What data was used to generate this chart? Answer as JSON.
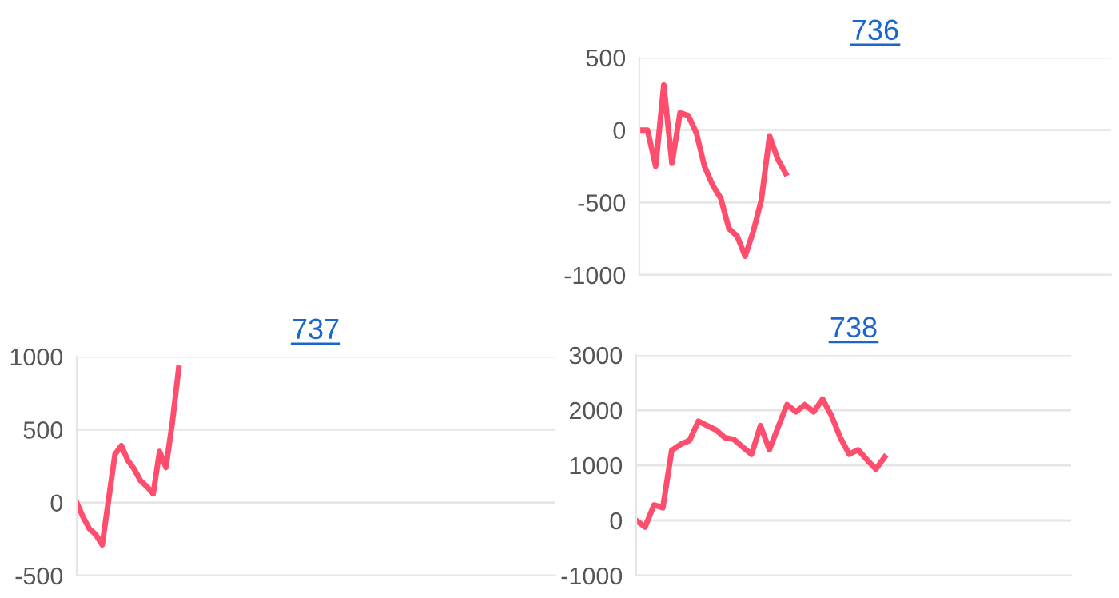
{
  "chart_data": [
    {
      "type": "line",
      "title": "736",
      "categories": [
        null,
        null,
        null,
        null,
        null,
        null,
        null,
        null,
        null,
        null,
        null,
        null,
        null,
        null,
        null,
        null,
        null,
        null,
        null,
        null,
        null,
        null,
        null,
        null,
        null,
        null,
        null,
        null,
        null,
        null,
        null,
        null,
        null,
        null,
        null,
        null,
        null,
        null,
        null,
        null,
        null,
        null,
        null,
        null,
        null,
        null,
        null,
        null,
        null,
        null,
        null,
        null,
        null,
        null,
        null,
        null,
        null,
        null,
        null
      ],
      "series": [
        {
          "color": "#ff4d6d",
          "values": [
            0,
            0,
            -250,
            310,
            -230,
            120,
            100,
            -20,
            -250,
            -380,
            -470,
            -680,
            -730,
            -870,
            -700,
            -480,
            -40,
            -200,
            -300,
            null,
            null,
            null,
            null,
            null,
            null,
            null,
            null,
            null,
            null,
            null,
            null,
            null,
            null,
            null,
            null,
            null,
            null,
            null,
            null,
            null,
            null,
            null,
            null,
            null,
            null,
            null,
            null,
            null,
            null,
            null,
            null,
            null,
            null,
            null,
            null,
            null,
            null,
            null,
            null
          ]
        }
      ],
      "ylim": [
        -1000,
        500
      ],
      "yticks": [
        -1000,
        -500,
        0,
        500
      ],
      "grid": "y",
      "tick_labels": "y",
      "marker": "none",
      "line_style": "solid"
    },
    {
      "type": "line",
      "title": "737",
      "categories": [
        null,
        null,
        null,
        null,
        null,
        null,
        null,
        null,
        null,
        null,
        null,
        null,
        null,
        null,
        null,
        null,
        null,
        null,
        null,
        null,
        null,
        null,
        null,
        null,
        null,
        null,
        null,
        null,
        null,
        null,
        null,
        null,
        null,
        null,
        null,
        null,
        null,
        null,
        null,
        null,
        null,
        null,
        null,
        null,
        null,
        null,
        null,
        null,
        null,
        null,
        null,
        null,
        null,
        null,
        null,
        null,
        null,
        null,
        null,
        null,
        null,
        null,
        null,
        null,
        null,
        null,
        null,
        null,
        null,
        null,
        null,
        null,
        null,
        null,
        null,
        null
      ],
      "series": [
        {
          "color": "#ff4d6d",
          "values": [
            0,
            -100,
            -180,
            -220,
            -290,
            20,
            330,
            390,
            290,
            230,
            150,
            110,
            60,
            350,
            240,
            550,
            920,
            null,
            null,
            null,
            null,
            null,
            null,
            null,
            null,
            null,
            null,
            null,
            null,
            null,
            null,
            null,
            null,
            null,
            null,
            null,
            null,
            null,
            null,
            null,
            null,
            null,
            null,
            null,
            null,
            null,
            null,
            null,
            null,
            null,
            null,
            null,
            null,
            null,
            null,
            null,
            null,
            null,
            null,
            null,
            null,
            null,
            null,
            null,
            null,
            null,
            null,
            null,
            null,
            null,
            null,
            null,
            null,
            null,
            null,
            null
          ]
        }
      ],
      "ylim": [
        -500,
        1000
      ],
      "yticks": [
        -500,
        0,
        500,
        1000
      ],
      "grid": "y",
      "tick_labels": "y",
      "marker": "none",
      "line_style": "solid"
    },
    {
      "type": "line",
      "title": "738",
      "categories": [
        null,
        null,
        null,
        null,
        null,
        null,
        null,
        null,
        null,
        null,
        null,
        null,
        null,
        null,
        null,
        null,
        null,
        null,
        null,
        null,
        null,
        null,
        null,
        null,
        null,
        null,
        null,
        null,
        null,
        null,
        null,
        null,
        null,
        null,
        null,
        null,
        null,
        null,
        null,
        null,
        null,
        null,
        null,
        null,
        null,
        null,
        null,
        null,
        null,
        null
      ],
      "series": [
        {
          "color": "#ff4d6d",
          "values": [
            0,
            -120,
            280,
            230,
            1270,
            1380,
            1450,
            1800,
            1720,
            1640,
            1500,
            1470,
            1330,
            1200,
            1720,
            1280,
            1700,
            2100,
            1970,
            2100,
            1970,
            2200,
            1900,
            1500,
            1200,
            1280,
            1100,
            930,
            1150,
            null,
            null,
            null,
            null,
            null,
            null,
            null,
            null,
            null,
            null,
            null,
            null,
            null,
            null,
            null,
            null,
            null,
            null,
            null,
            null,
            null
          ]
        }
      ],
      "ylim": [
        -1000,
        3000
      ],
      "yticks": [
        -1000,
        0,
        1000,
        2000,
        3000
      ],
      "grid": "y",
      "tick_labels": "y",
      "marker": "none",
      "line_style": "solid"
    }
  ]
}
